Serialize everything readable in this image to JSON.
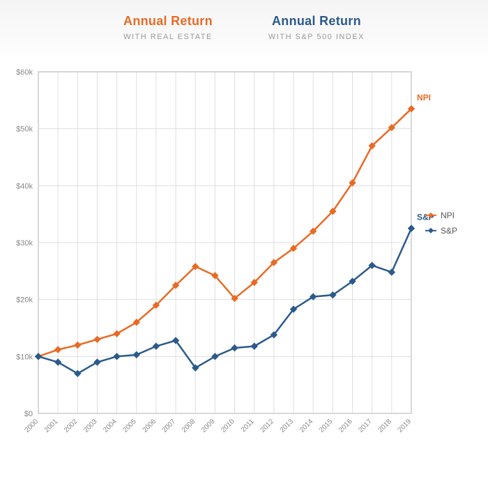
{
  "header": {
    "left": {
      "title": "Annual Return",
      "subtitle": "WITH REAL ESTATE",
      "color": "#e96a25"
    },
    "right": {
      "title": "Annual Return",
      "subtitle": "WITH S&P 500 INDEX",
      "color": "#2b5a8c"
    }
  },
  "chart": {
    "type": "line",
    "background_color": "#ffffff",
    "plot_border_color": "#cccccc",
    "grid_color": "#dedede",
    "axis_text_color": "#888888",
    "xlim": [
      2000,
      2019
    ],
    "ylim": [
      0,
      60
    ],
    "ytick_step": 10,
    "ytick_labels": [
      "$0",
      "$10k",
      "$20k",
      "$30k",
      "$40k",
      "$50k",
      "$60k"
    ],
    "x_categories": [
      "2000",
      "2001",
      "2002",
      "2003",
      "2004",
      "2005",
      "2006",
      "2007",
      "2008",
      "2009",
      "2010",
      "2011",
      "2012",
      "2013",
      "2014",
      "2015",
      "2016",
      "2017",
      "2018",
      "2019"
    ],
    "x_label_rotate": -45,
    "line_width": 2.5,
    "marker_size": 4.5,
    "marker_style": "diamond",
    "series": [
      {
        "name": "NPI",
        "color": "#e96a25",
        "end_label": "NPI",
        "values": [
          10.0,
          11.2,
          12.0,
          13.0,
          14.0,
          16.0,
          19.0,
          22.5,
          25.8,
          24.2,
          20.2,
          23.0,
          26.5,
          29.0,
          32.0,
          35.5,
          40.5,
          47.0,
          50.2,
          53.5
        ]
      },
      {
        "name": "S&P",
        "color": "#2b5a8c",
        "end_label": "S&P",
        "values": [
          10.0,
          9.0,
          7.0,
          9.0,
          10.0,
          10.3,
          11.8,
          12.8,
          8.0,
          10.0,
          11.5,
          11.8,
          13.8,
          18.3,
          20.5,
          20.8,
          23.2,
          26.0,
          24.8,
          32.5
        ]
      }
    ],
    "legend": {
      "position": "right",
      "items": [
        {
          "label": "NPI",
          "color": "#e96a25"
        },
        {
          "label": "S&P",
          "color": "#2b5a8c"
        }
      ]
    }
  }
}
